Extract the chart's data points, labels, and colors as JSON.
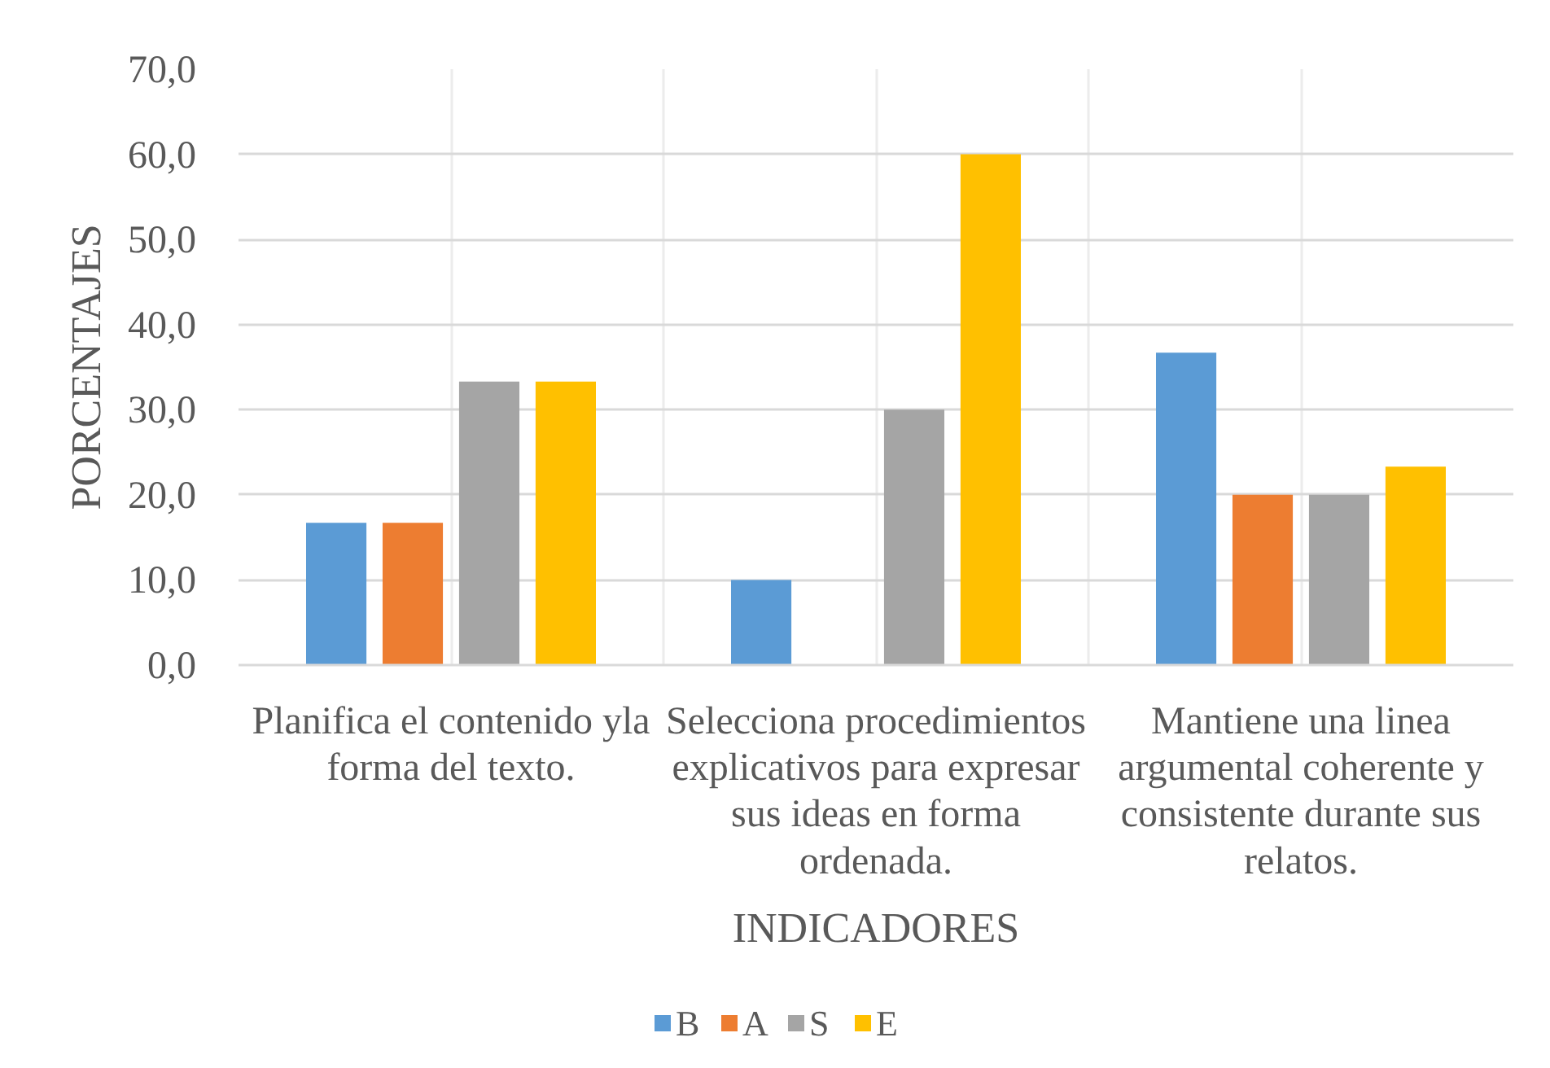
{
  "chart_data": {
    "type": "bar",
    "xlabel": "INDICADORES",
    "ylabel": "PORCENTAJES",
    "categories": [
      "Planifica el contenido yla forma del texto.",
      "Selecciona procedimientos explicativos para expresar sus ideas en forma ordenada.",
      "Mantiene una linea argumental coherente y consistente durante sus relatos."
    ],
    "series": [
      {
        "name": "B",
        "color": "#5b9bd5",
        "values": [
          16.7,
          10.0,
          36.7
        ]
      },
      {
        "name": "A",
        "color": "#ed7d31",
        "values": [
          16.7,
          null,
          20.0
        ]
      },
      {
        "name": "S",
        "color": "#a5a5a5",
        "values": [
          33.3,
          30.0,
          20.0
        ]
      },
      {
        "name": "E",
        "color": "#ffc000",
        "values": [
          33.3,
          60.0,
          23.3
        ]
      }
    ],
    "ylim": [
      0,
      70
    ],
    "yticks": [
      {
        "value": 0,
        "label": "0,0"
      },
      {
        "value": 10,
        "label": "10,0"
      },
      {
        "value": 20,
        "label": "20,0"
      },
      {
        "value": 30,
        "label": "30,0"
      },
      {
        "value": 40,
        "label": "40,0"
      },
      {
        "value": 50,
        "label": "50,0"
      },
      {
        "value": 60,
        "label": "60,0"
      },
      {
        "value": 70,
        "label": "70,0"
      }
    ],
    "grid": true,
    "legend": "bottom"
  }
}
